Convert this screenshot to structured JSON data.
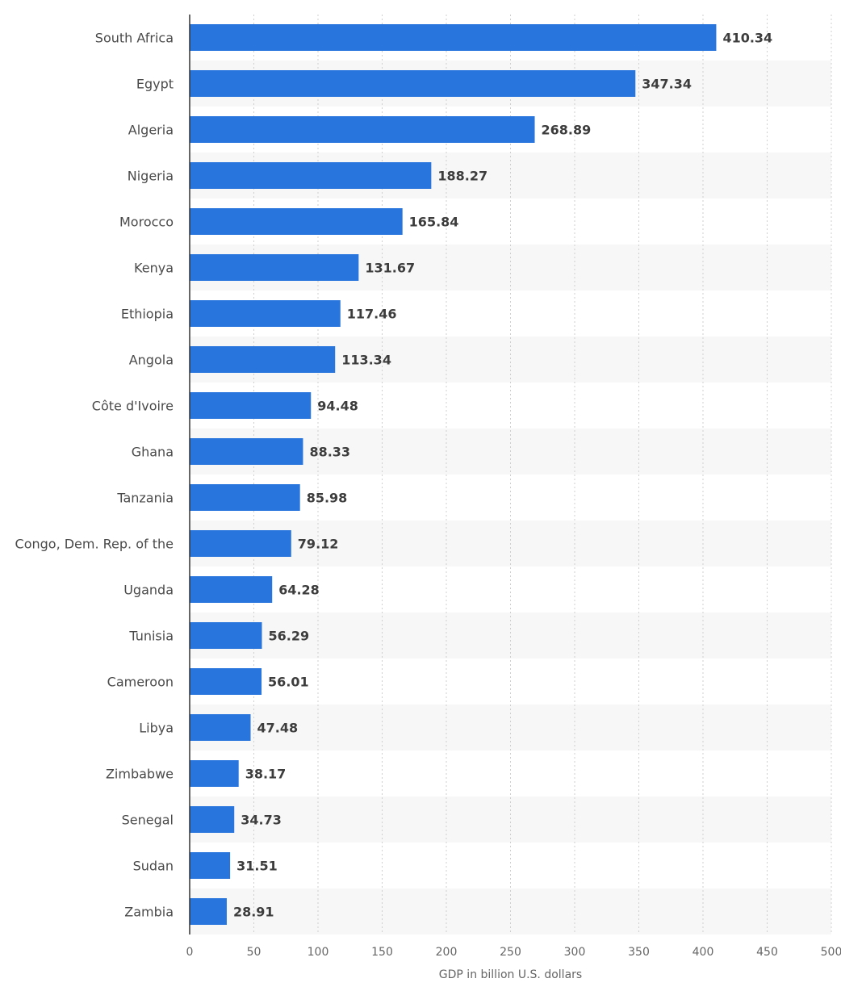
{
  "chart_data": {
    "type": "bar",
    "orientation": "horizontal",
    "categories": [
      "South Africa",
      "Egypt",
      "Algeria",
      "Nigeria",
      "Morocco",
      "Kenya",
      "Ethiopia",
      "Angola",
      "Côte d'Ivoire",
      "Ghana",
      "Tanzania",
      "Congo, Dem. Rep. of the",
      "Uganda",
      "Tunisia",
      "Cameroon",
      "Libya",
      "Zimbabwe",
      "Senegal",
      "Sudan",
      "Zambia"
    ],
    "values": [
      410.34,
      347.34,
      268.89,
      188.27,
      165.84,
      131.67,
      117.46,
      113.34,
      94.48,
      88.33,
      85.98,
      79.12,
      64.28,
      56.29,
      56.01,
      47.48,
      38.17,
      34.73,
      31.51,
      28.91
    ],
    "value_labels": [
      "410.34",
      "347.34",
      "268.89",
      "188.27",
      "165.84",
      "131.67",
      "117.46",
      "113.34",
      "94.48",
      "88.33",
      "85.98",
      "79.12",
      "64.28",
      "56.29",
      "56.01",
      "47.48",
      "38.17",
      "34.73",
      "31.51",
      "28.91"
    ],
    "xlabel": "GDP in billion U.S. dollars",
    "xlim": [
      0,
      500
    ],
    "xticks": [
      0,
      50,
      100,
      150,
      200,
      250,
      300,
      350,
      400,
      450,
      500
    ],
    "xtick_labels": [
      "0",
      "50",
      "100",
      "150",
      "200",
      "250",
      "300",
      "350",
      "400",
      "450",
      "500"
    ],
    "grid": "vertical dotted",
    "alternating_row_bands": true,
    "colors": {
      "bar": "#2876dd",
      "band": "#f7f7f7",
      "grid": "#cfcfcf",
      "axis": "#333333"
    }
  }
}
